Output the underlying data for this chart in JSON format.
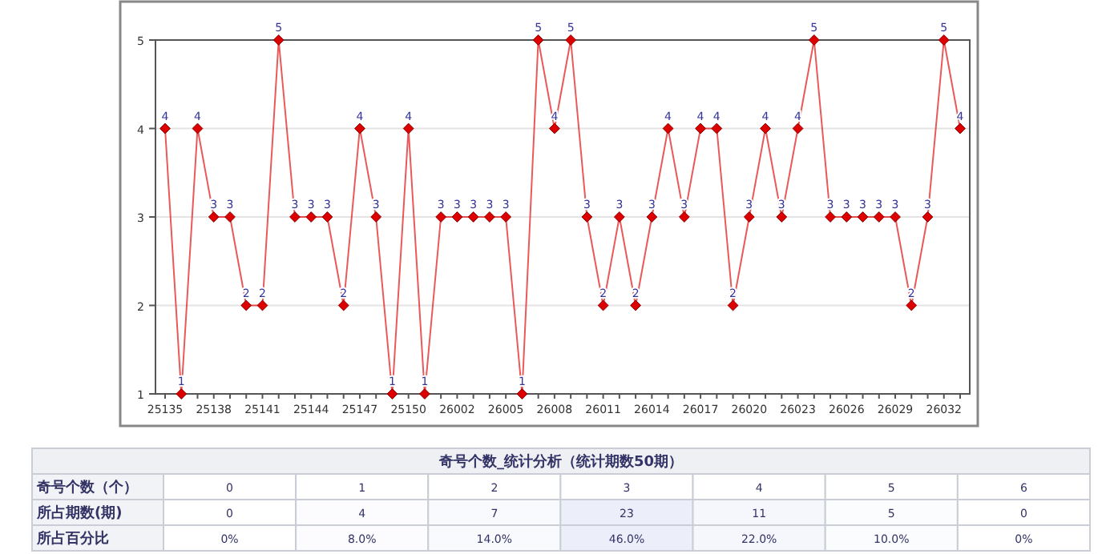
{
  "chart_data": [
    {
      "type": "line",
      "categories": [
        "25135",
        null,
        null,
        "25138",
        null,
        null,
        "25141",
        null,
        null,
        "25144",
        null,
        null,
        "25147",
        null,
        null,
        "25150",
        null,
        null,
        "26002",
        null,
        null,
        "26005",
        null,
        null,
        "26008",
        null,
        null,
        "26011",
        null,
        null,
        "26014",
        null,
        null,
        "26017",
        null,
        null,
        "26020",
        null,
        null,
        "26023",
        null,
        null,
        "26026",
        null,
        null,
        "26029",
        null,
        null,
        "26032",
        null
      ],
      "series": [
        {
          "color": "#dd0000",
          "values": [
            4,
            1,
            4,
            3,
            3,
            2,
            2,
            5,
            3,
            3,
            3,
            2,
            4,
            3,
            1,
            4,
            1,
            3,
            3,
            3,
            3,
            3,
            1,
            5,
            4,
            5,
            3,
            2,
            3,
            2,
            3,
            4,
            3,
            4,
            4,
            2,
            3,
            4,
            3,
            4,
            5,
            3,
            3,
            3,
            3,
            3,
            2,
            3,
            5,
            4
          ]
        }
      ],
      "ylim": [
        1,
        5
      ],
      "yticks": [
        1,
        2,
        3,
        4,
        5
      ],
      "grid": "y",
      "marker": "diamond",
      "data_labels": true
    },
    {
      "type": "heatmap",
      "title": "奇号个数_统计分析（统计期数50期）",
      "xlabel": "奇号个数（个）",
      "categories": [
        "0",
        "1",
        "2",
        "3",
        "4",
        "5",
        "6"
      ],
      "y_categories": [
        "所占期数(期)",
        "所占百分比"
      ],
      "cells": [
        [
          0,
          4,
          7,
          23,
          11,
          5,
          0
        ],
        [
          0,
          8.0,
          14.0,
          46.0,
          22.0,
          10.0,
          0
        ]
      ],
      "cell_labels": [
        [
          "0",
          "4",
          "7",
          "23",
          "11",
          "5",
          "0"
        ],
        [
          "0%",
          "8.0%",
          "14.0%",
          "46.0%",
          "22.0%",
          "10.0%",
          "0%"
        ]
      ]
    }
  ]
}
